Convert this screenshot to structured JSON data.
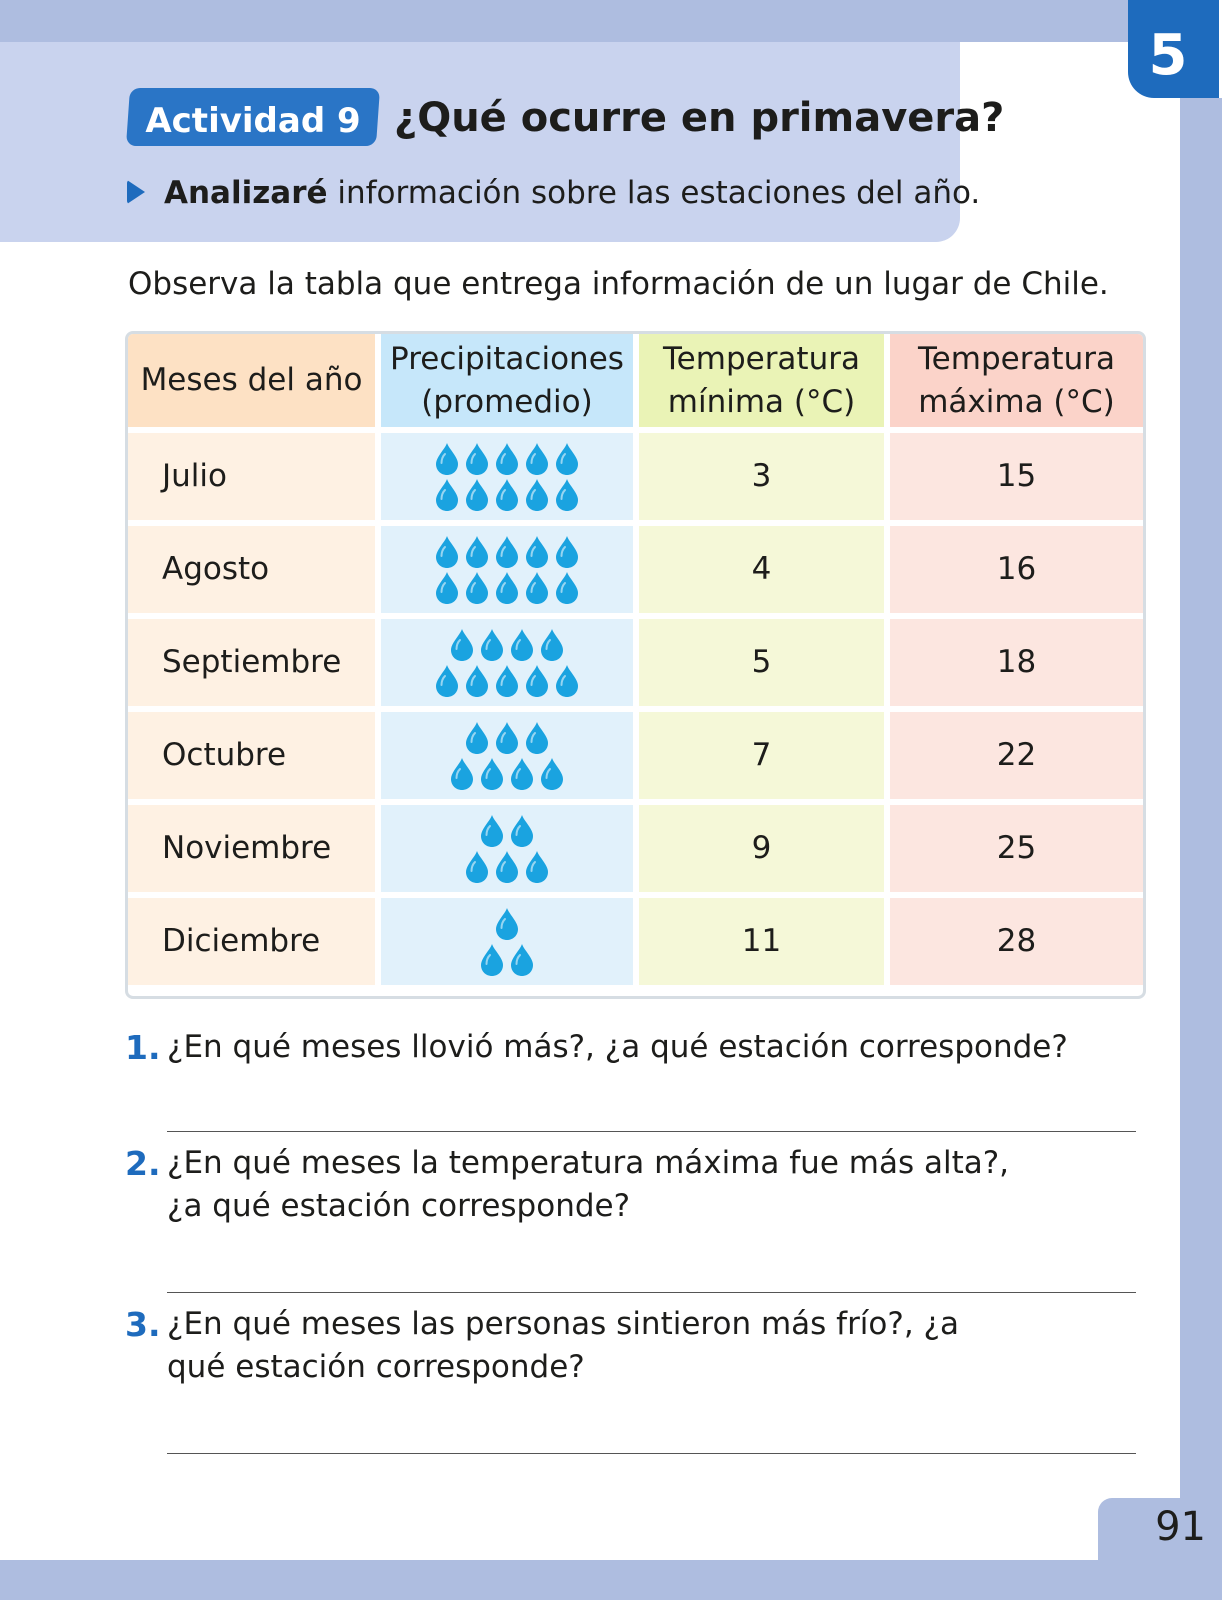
{
  "chapter_number": "5",
  "activity": {
    "badge": "Actividad 9",
    "title": "¿Qué ocurre en primavera?",
    "objective_bold": "Analizaré",
    "objective_rest": " información sobre las estaciones del año."
  },
  "intro": "Observa la tabla que entrega información de un lugar de Chile.",
  "table": {
    "headers": [
      "Meses del año",
      "Precipitaciones (promedio)",
      "Temperatura mínima (°C)",
      "Temperatura máxima (°C)"
    ],
    "rows": [
      {
        "month": "Julio",
        "drops": 10,
        "min": "3",
        "max": "15"
      },
      {
        "month": "Agosto",
        "drops": 10,
        "min": "4",
        "max": "16"
      },
      {
        "month": "Septiembre",
        "drops": 9,
        "min": "5",
        "max": "18"
      },
      {
        "month": "Octubre",
        "drops": 7,
        "min": "7",
        "max": "22"
      },
      {
        "month": "Noviembre",
        "drops": 5,
        "min": "9",
        "max": "25"
      },
      {
        "month": "Diciembre",
        "drops": 3,
        "min": "11",
        "max": "28"
      }
    ]
  },
  "questions": [
    {
      "number": "1.",
      "text": "¿En qué meses llovió más?, ¿a qué estación corresponde?"
    },
    {
      "number": "2.",
      "text": "¿En qué meses la temperatura máxima fue más alta?, ¿a qué estación corresponde?"
    },
    {
      "number": "3.",
      "text": "¿En qué meses las personas sintieron más frío?, ¿a qué estación corresponde?"
    }
  ],
  "page_number": "91",
  "colors": {
    "accent_blue": "#1e6bbd",
    "drop_blue": "#1aa3e0",
    "band": "#aebde0"
  },
  "icons": {
    "drop": "water-drop-icon",
    "objective": "arrow-right-icon"
  }
}
